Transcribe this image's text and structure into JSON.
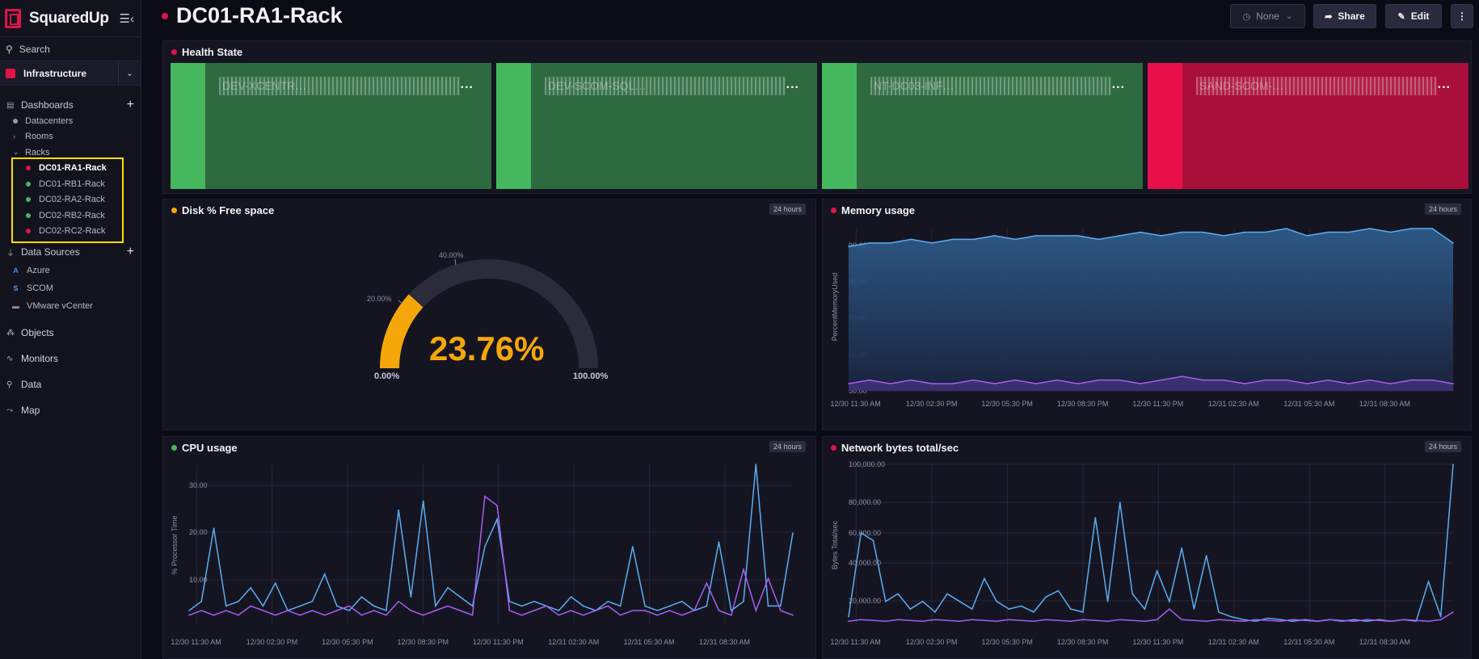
{
  "app": {
    "name": "SquaredUp"
  },
  "sidebar": {
    "search_label": "Search",
    "workspace": "Infrastructure",
    "dashboards_label": "Dashboards",
    "dashboards": [
      {
        "label": "Datacenters",
        "type": "bullet"
      },
      {
        "label": "Rooms",
        "type": "chevron-right"
      },
      {
        "label": "Racks",
        "type": "chevron-down"
      }
    ],
    "racks": [
      {
        "label": "DC01-RA1-Rack",
        "status": "#e0134a",
        "active": true
      },
      {
        "label": "DC01-RB1-Rack",
        "status": "#45b85e"
      },
      {
        "label": "DC02-RA2-Rack",
        "status": "#45b85e"
      },
      {
        "label": "DC02-RB2-Rack",
        "status": "#45b85e"
      },
      {
        "label": "DC02-RC2-Rack",
        "status": "#e0134a"
      }
    ],
    "data_sources_label": "Data Sources",
    "data_sources": [
      {
        "label": "Azure",
        "icon": "azure-icon",
        "color": "#3a8ee6"
      },
      {
        "label": "SCOM",
        "icon": "scom-icon",
        "color": "#4d9be8"
      },
      {
        "label": "VMware vCenter",
        "icon": "vmware-icon",
        "color": "#8e8ea0"
      }
    ],
    "main_nav": [
      {
        "label": "Objects",
        "icon": "objects-icon"
      },
      {
        "label": "Monitors",
        "icon": "monitors-icon"
      },
      {
        "label": "Data",
        "icon": "data-icon"
      },
      {
        "label": "Map",
        "icon": "map-icon"
      }
    ]
  },
  "header": {
    "title": "DC01-RA1-Rack",
    "status_color": "#e0134a",
    "none_label": "None",
    "share_label": "Share",
    "edit_label": "Edit"
  },
  "health_state": {
    "title": "Health State",
    "status_color": "#e0134a",
    "tiles": [
      {
        "label": "DEV-XCENTR…",
        "status": "healthy"
      },
      {
        "label": "DEV-SCOM-SQL…",
        "status": "healthy"
      },
      {
        "label": "NT-DC03-INF…",
        "status": "healthy"
      },
      {
        "label": "SAND-SCOM-…",
        "status": "critical"
      }
    ]
  },
  "disk": {
    "title": "Disk % Free space",
    "status_color": "#f5a70a",
    "timeframe": "24 hours",
    "value_label": "23.76%",
    "value": 23.76,
    "min_label": "0.00%",
    "max_label": "100.00%",
    "tick_20": "20.00%",
    "tick_40": "40.00%",
    "gauge_color": "#f5a70a"
  },
  "memory": {
    "title": "Memory usage",
    "status_color": "#e0134a",
    "timeframe": "24 hours",
    "ylabel": "PercentMemoryUsed",
    "yticks": [
      "90.00",
      "80.00",
      "70.00",
      "60.00",
      "50.00"
    ],
    "xticks": [
      "12/30 11:30 AM",
      "12/30 02:30 PM",
      "12/30 05:30 PM",
      "12/30 08:30 PM",
      "12/30 11:30 PM",
      "12/31 02:30 AM",
      "12/31 05:30 AM",
      "12/31 08:30 AM"
    ]
  },
  "cpu": {
    "title": "CPU usage",
    "status_color": "#45b85e",
    "timeframe": "24 hours",
    "ylabel": "% Processor Time",
    "yticks": [
      "30.00",
      "20.00",
      "10.00"
    ],
    "xticks": [
      "12/30 11:30 AM",
      "12/30 02:30 PM",
      "12/30 05:30 PM",
      "12/30 08:30 PM",
      "12/30 11:30 PM",
      "12/31 02:30 AM",
      "12/31 05:30 AM",
      "12/31 08:30 AM"
    ]
  },
  "network": {
    "title": "Network bytes total/sec",
    "status_color": "#e0134a",
    "timeframe": "24 hours",
    "ylabel": "Bytes Total/sec",
    "yticks": [
      "100,000.00",
      "80,000.00",
      "60,000.00",
      "40,000.00",
      "20,000.00"
    ],
    "xticks": [
      "12/30 11:30 AM",
      "12/30 02:30 PM",
      "12/30 05:30 PM",
      "12/30 08:30 PM",
      "12/30 11:30 PM",
      "12/31 02:30 AM",
      "12/31 05:30 AM",
      "12/31 08:30 AM"
    ]
  },
  "chart_data": [
    {
      "type": "line",
      "title": "Memory usage",
      "ylabel": "PercentMemoryUsed",
      "ylim": [
        50,
        95
      ],
      "series": [
        {
          "values": [
            90,
            91,
            91,
            92,
            91,
            92,
            92,
            93,
            92,
            93,
            93,
            93,
            92,
            93,
            94,
            93,
            94,
            94,
            93,
            94,
            94,
            95,
            93,
            94,
            94,
            95,
            94,
            95,
            95,
            91
          ]
        },
        {
          "values": [
            52,
            53,
            52,
            53,
            52,
            52,
            53,
            52,
            53,
            52,
            53,
            52,
            53,
            53,
            52,
            53,
            54,
            53,
            53,
            52,
            53,
            53,
            52,
            53,
            52,
            53,
            52,
            53,
            53,
            52
          ]
        }
      ]
    },
    {
      "type": "line",
      "title": "CPU usage",
      "ylabel": "% Processor Time",
      "ylim": [
        0,
        35
      ],
      "series": [
        {
          "values": [
            3,
            5,
            21,
            4,
            5,
            8,
            4,
            9,
            3,
            4,
            5,
            11,
            4,
            3,
            6,
            4,
            3,
            25,
            6,
            27,
            4,
            8,
            6,
            4,
            17,
            23,
            5,
            4,
            5,
            4,
            3,
            6,
            4,
            3,
            5,
            4,
            17,
            4,
            3,
            4,
            5,
            3,
            4,
            18,
            3,
            5,
            35,
            4,
            4,
            20
          ]
        },
        {
          "values": [
            2,
            3,
            2,
            3,
            2,
            4,
            3,
            2,
            3,
            2,
            3,
            2,
            3,
            4,
            2,
            3,
            2,
            5,
            3,
            2,
            3,
            4,
            3,
            2,
            28,
            26,
            3,
            2,
            3,
            4,
            2,
            3,
            2,
            3,
            4,
            2,
            3,
            3,
            2,
            3,
            2,
            3,
            9,
            3,
            2,
            12,
            3,
            10,
            3,
            2
          ]
        }
      ]
    },
    {
      "type": "line",
      "title": "Network bytes total/sec",
      "ylabel": "Bytes Total/sec",
      "ylim": [
        0,
        105000
      ],
      "series": [
        {
          "values": [
            5000,
            60000,
            55000,
            15000,
            20000,
            10000,
            15000,
            8000,
            20000,
            15000,
            10000,
            30000,
            15000,
            10000,
            12000,
            8000,
            18000,
            22000,
            10000,
            8000,
            70000,
            15000,
            80000,
            20000,
            10000,
            35000,
            15000,
            50000,
            10000,
            45000,
            8000,
            5000,
            3000,
            2000,
            4000,
            3000,
            2000,
            3000,
            2000,
            3000,
            2000,
            3000,
            2000,
            3000,
            2000,
            3000,
            2000,
            28000,
            5000,
            105000
          ]
        },
        {
          "values": [
            2000,
            3000,
            2500,
            2000,
            3000,
            2500,
            2000,
            3000,
            2500,
            2000,
            3000,
            2500,
            2000,
            3000,
            2500,
            2000,
            3000,
            2500,
            2000,
            3000,
            2500,
            2000,
            3000,
            2500,
            2000,
            3000,
            10000,
            3000,
            2500,
            2000,
            3000,
            2500,
            2000,
            3000,
            2500,
            2000,
            3000,
            2500,
            2000,
            3000,
            2500,
            2000,
            3000,
            2500,
            2000,
            3000,
            2500,
            2000,
            3000,
            8000
          ]
        }
      ]
    }
  ]
}
